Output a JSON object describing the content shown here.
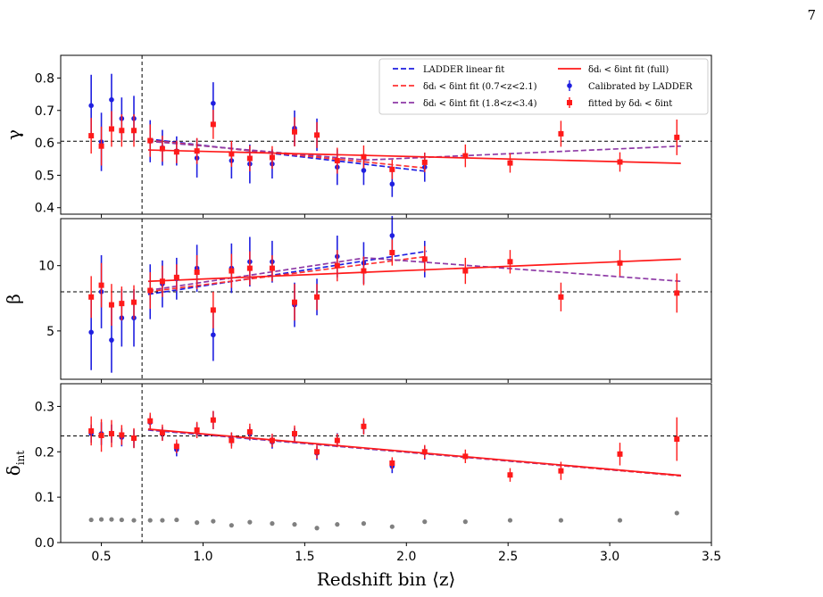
{
  "page_number": "7",
  "chart_data": {
    "type": "scatter",
    "shared_xlabel": "Redshift bin ⟨z⟩",
    "xlim": [
      0.3,
      3.5
    ],
    "xticks": [
      "0.5",
      "1.0",
      "1.5",
      "2.0",
      "2.5",
      "3.0",
      "3.5"
    ],
    "vertical_line_x": 0.7,
    "legend": {
      "placement": "top-right",
      "entries": [
        "LADDER linear fit",
        "δdᵢ < δint fit (full)",
        "δdᵢ < δint fit (0.7<z<2.1)",
        "Calibrated by LADDER",
        "δdᵢ < δint fit (1.8<z<3.4)",
        "fitted by δdᵢ < δint"
      ]
    },
    "colors": {
      "ladder": "#1f1fe0",
      "fit": "#ff1a1a",
      "mid": "#ff3333",
      "high": "#8e3aa6",
      "gray": "#808080"
    },
    "panels": [
      {
        "ylabel": "γ",
        "ylim": [
          0.38,
          0.87
        ],
        "yticks": [
          0.4,
          0.5,
          0.6,
          0.7,
          0.8
        ],
        "ytick_labels": [
          "0.4",
          "0.5",
          "0.6",
          "0.7",
          "0.8"
        ],
        "hline": 0.605,
        "ladder": {
          "x": [
            0.45,
            0.5,
            0.55,
            0.6,
            0.66,
            0.74,
            0.8,
            0.87,
            0.97,
            1.05,
            1.14,
            1.23,
            1.34,
            1.45,
            1.56,
            1.66,
            1.79,
            1.93,
            2.09
          ],
          "y": [
            0.715,
            0.603,
            0.733,
            0.675,
            0.675,
            0.605,
            0.585,
            0.575,
            0.553,
            0.722,
            0.545,
            0.535,
            0.535,
            0.645,
            0.625,
            0.525,
            0.515,
            0.473,
            0.525
          ],
          "err": [
            0.095,
            0.09,
            0.08,
            0.065,
            0.07,
            0.065,
            0.055,
            0.045,
            0.06,
            0.065,
            0.055,
            0.06,
            0.045,
            0.055,
            0.05,
            0.055,
            0.045,
            0.04,
            0.045
          ]
        },
        "fitted": {
          "x": [
            0.45,
            0.5,
            0.55,
            0.6,
            0.66,
            0.74,
            0.8,
            0.87,
            0.97,
            1.05,
            1.14,
            1.23,
            1.34,
            1.45,
            1.56,
            1.66,
            1.79,
            1.93,
            2.09,
            2.29,
            2.51,
            2.76,
            3.05,
            3.33
          ],
          "y": [
            0.622,
            0.59,
            0.643,
            0.638,
            0.638,
            0.607,
            0.582,
            0.572,
            0.575,
            0.657,
            0.566,
            0.552,
            0.555,
            0.634,
            0.624,
            0.545,
            0.557,
            0.518,
            0.54,
            0.56,
            0.538,
            0.628,
            0.541,
            0.617
          ],
          "err": [
            0.055,
            0.06,
            0.055,
            0.05,
            0.05,
            0.05,
            0.04,
            0.035,
            0.04,
            0.045,
            0.04,
            0.04,
            0.035,
            0.045,
            0.04,
            0.04,
            0.035,
            0.03,
            0.03,
            0.035,
            0.03,
            0.04,
            0.03,
            0.055
          ]
        },
        "fit_full": {
          "x": [
            0.73,
            3.35
          ],
          "y": [
            0.578,
            0.537
          ]
        },
        "ladder_fit": {
          "x": [
            0.73,
            2.1
          ],
          "y": [
            0.612,
            0.512
          ]
        },
        "fit_mid": {
          "x": [
            0.73,
            2.1
          ],
          "y": [
            0.608,
            0.522
          ]
        },
        "fit_high": {
          "x": [
            0.73,
            1.8,
            3.35
          ],
          "y": [
            0.605,
            0.547,
            0.59
          ]
        }
      },
      {
        "ylabel": "β",
        "ylim": [
          1.3,
          13.6
        ],
        "yticks": [
          5,
          10
        ],
        "ytick_labels": [
          "5",
          "10"
        ],
        "hline": 8.0,
        "ladder": {
          "x": [
            0.45,
            0.5,
            0.55,
            0.6,
            0.66,
            0.74,
            0.8,
            0.87,
            0.97,
            1.05,
            1.14,
            1.23,
            1.34,
            1.45,
            1.56,
            1.66,
            1.79,
            1.93,
            2.09
          ],
          "y": [
            4.9,
            8.0,
            4.3,
            6.0,
            6.0,
            8.0,
            8.6,
            9.0,
            9.8,
            4.7,
            9.8,
            10.3,
            10.3,
            7.0,
            7.6,
            10.7,
            10.2,
            12.3,
            10.5
          ],
          "err": [
            2.9,
            2.8,
            2.5,
            2.2,
            2.2,
            2.1,
            1.8,
            1.6,
            1.8,
            2.0,
            1.9,
            1.9,
            1.6,
            1.7,
            1.4,
            1.6,
            1.6,
            1.5,
            1.4
          ]
        },
        "fitted": {
          "x": [
            0.45,
            0.5,
            0.55,
            0.6,
            0.66,
            0.74,
            0.8,
            0.87,
            0.97,
            1.05,
            1.14,
            1.23,
            1.34,
            1.45,
            1.56,
            1.66,
            1.79,
            1.93,
            2.09,
            2.29,
            2.51,
            2.76,
            3.05,
            3.33
          ],
          "y": [
            7.6,
            8.5,
            7.0,
            7.1,
            7.2,
            8.1,
            8.8,
            9.1,
            9.5,
            6.6,
            9.6,
            9.8,
            9.8,
            7.2,
            7.6,
            10.0,
            9.6,
            11.0,
            10.5,
            9.6,
            10.3,
            7.6,
            10.2,
            7.9
          ],
          "err": [
            1.6,
            1.7,
            1.6,
            1.3,
            1.3,
            1.4,
            1.2,
            1.0,
            1.3,
            1.4,
            1.3,
            1.3,
            1.0,
            1.4,
            1.0,
            1.2,
            1.1,
            1.0,
            1.0,
            1.0,
            0.9,
            1.1,
            1.0,
            1.5
          ]
        },
        "fit_full": {
          "x": [
            0.73,
            3.35
          ],
          "y": [
            8.8,
            10.5
          ]
        },
        "ladder_fit": {
          "x": [
            0.73,
            2.1
          ],
          "y": [
            7.8,
            11.1
          ]
        },
        "fit_mid": {
          "x": [
            0.73,
            2.1
          ],
          "y": [
            8.0,
            10.7
          ]
        },
        "fit_high": {
          "x": [
            0.73,
            1.8,
            3.35
          ],
          "y": [
            8.1,
            10.6,
            8.8
          ]
        }
      },
      {
        "ylabel": "δint",
        "ylim": [
          0.0,
          0.35
        ],
        "yticks": [
          0.0,
          0.1,
          0.2,
          0.3
        ],
        "ytick_labels": [
          "0.0",
          "0.1",
          "0.2",
          "0.3"
        ],
        "hline": 0.235,
        "ladder": {
          "x": [
            0.45,
            0.5,
            0.55,
            0.6,
            0.66,
            0.74,
            0.8,
            0.87,
            0.97,
            1.05,
            1.14,
            1.23,
            1.34,
            1.45,
            1.56,
            1.66,
            1.79,
            1.93,
            2.09
          ],
          "y": [
            0.24,
            0.24,
            0.24,
            0.232,
            0.229,
            0.265,
            0.24,
            0.205,
            0.248,
            0.27,
            0.227,
            0.24,
            0.222,
            0.238,
            0.197,
            0.226,
            0.255,
            0.168,
            0.198
          ],
          "err": [
            0.02,
            0.025,
            0.02,
            0.02,
            0.02,
            0.015,
            0.015,
            0.015,
            0.015,
            0.02,
            0.015,
            0.015,
            0.015,
            0.015,
            0.015,
            0.015,
            0.015,
            0.015,
            0.015
          ]
        },
        "fitted": {
          "x": [
            0.45,
            0.5,
            0.55,
            0.6,
            0.66,
            0.74,
            0.8,
            0.87,
            0.97,
            1.05,
            1.14,
            1.23,
            1.34,
            1.45,
            1.56,
            1.66,
            1.79,
            1.93,
            2.09,
            2.29,
            2.51,
            2.76,
            3.05,
            3.33
          ],
          "y": [
            0.246,
            0.236,
            0.24,
            0.237,
            0.23,
            0.268,
            0.242,
            0.212,
            0.248,
            0.27,
            0.225,
            0.244,
            0.225,
            0.24,
            0.2,
            0.225,
            0.256,
            0.175,
            0.2,
            0.19,
            0.149,
            0.158,
            0.195,
            0.228
          ],
          "err": [
            0.032,
            0.036,
            0.03,
            0.022,
            0.022,
            0.018,
            0.018,
            0.015,
            0.018,
            0.02,
            0.018,
            0.018,
            0.015,
            0.018,
            0.015,
            0.015,
            0.018,
            0.013,
            0.015,
            0.015,
            0.015,
            0.02,
            0.025,
            0.048
          ]
        },
        "gray": {
          "x": [
            0.45,
            0.5,
            0.55,
            0.6,
            0.66,
            0.74,
            0.8,
            0.87,
            0.97,
            1.05,
            1.14,
            1.23,
            1.34,
            1.45,
            1.56,
            1.66,
            1.79,
            1.93,
            2.09,
            2.29,
            2.51,
            2.76,
            3.05,
            3.33
          ],
          "y": [
            0.05,
            0.051,
            0.051,
            0.05,
            0.049,
            0.049,
            0.049,
            0.05,
            0.044,
            0.047,
            0.038,
            0.045,
            0.042,
            0.04,
            0.032,
            0.04,
            0.042,
            0.035,
            0.046,
            0.046,
            0.049,
            0.049,
            0.049,
            0.065
          ]
        },
        "fit_full": {
          "x": [
            0.73,
            3.35
          ],
          "y": [
            0.25,
            0.148
          ]
        },
        "ladder_fit": {
          "x": [
            0.73,
            3.35
          ],
          "y": [
            0.248,
            0.147
          ]
        },
        "fit_mid": {
          "x": [
            0.73,
            3.35
          ],
          "y": [
            0.249,
            0.147
          ]
        },
        "fit_high": {
          "x": [
            0.73,
            3.35
          ],
          "y": [
            0.249,
            0.148
          ]
        }
      }
    ]
  }
}
